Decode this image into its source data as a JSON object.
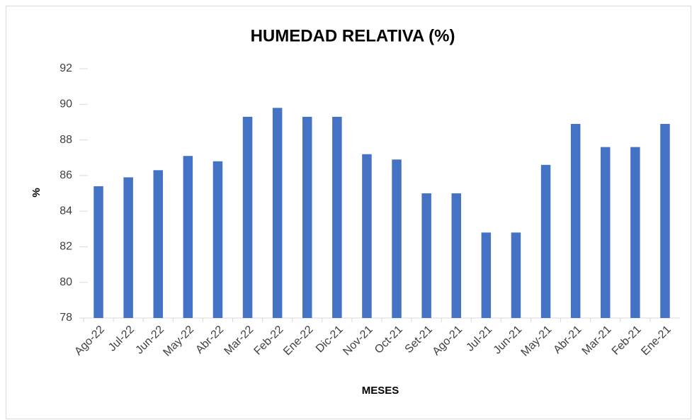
{
  "chart_data": {
    "type": "bar",
    "title": "HUMEDAD RELATIVA (%)",
    "x_label": "MESES",
    "y_label": "%",
    "categories": [
      "Ago-22",
      "Jul-22",
      "Jun-22",
      "May-22",
      "Abr-22",
      "Mar-22",
      "Feb-22",
      "Ene-22",
      "Dic-21",
      "Nov-21",
      "Oct-21",
      "Set-21",
      "Ago-21",
      "Jul-21",
      "Jun-21",
      "May-21",
      "Abr-21",
      "Mar-21",
      "Feb-21",
      "Ene-21"
    ],
    "values": [
      85.4,
      85.9,
      86.3,
      87.1,
      86.8,
      89.3,
      89.8,
      89.3,
      89.3,
      87.2,
      86.9,
      85.0,
      85.0,
      82.8,
      82.8,
      86.6,
      88.9,
      87.6,
      87.6,
      88.9
    ],
    "color": "#4472c4",
    "ylim": [
      78,
      92
    ],
    "yticks": [
      78,
      80,
      82,
      84,
      86,
      88,
      90,
      92
    ],
    "grid": false
  }
}
